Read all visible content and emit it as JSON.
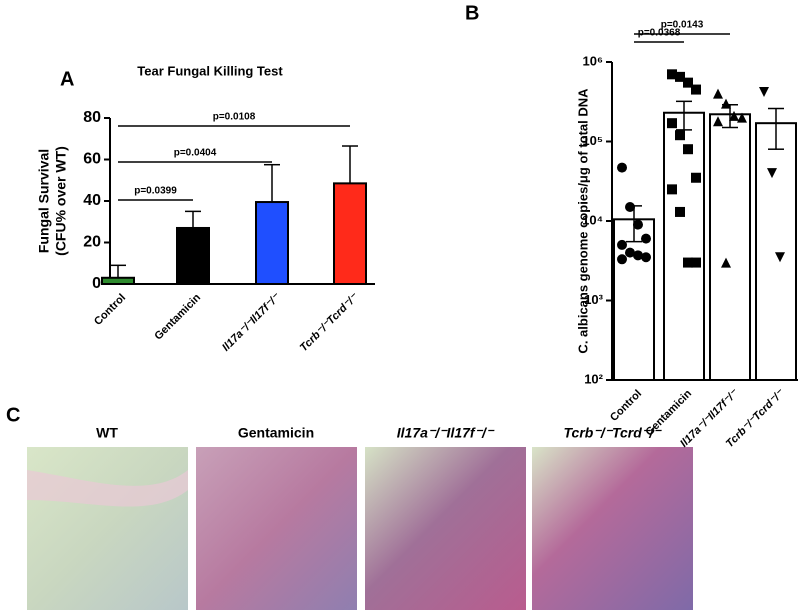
{
  "chart_data": [
    {
      "type": "bar",
      "panel_label": "A",
      "title": "Tear Fungal Killing Test",
      "ylabel_lines": [
        "Fungal Survival",
        "(CFU% over WT)"
      ],
      "categories": [
        "Control",
        "Gentamicin",
        "Il17a⁻/⁻Il17f⁻/⁻",
        "Tcrb⁻/⁻Tcrd⁻/⁻"
      ],
      "values": [
        3,
        27,
        39.5,
        48.5
      ],
      "errors": [
        6,
        8,
        18,
        18
      ],
      "colors": [
        "#2e8b2e",
        "#000000",
        "#1f4fff",
        "#ff2a1a"
      ],
      "ylim": [
        0,
        80
      ],
      "yticks": [
        0,
        20,
        40,
        60,
        80
      ],
      "annotations": [
        "p=0.0399",
        "p=0.0404",
        "p=0.0108"
      ]
    },
    {
      "type": "bar",
      "panel_label": "B",
      "ylabel": "C. albicans genome copies/μg of total DNA",
      "categories": [
        "Control",
        "Gentamicin",
        "Il17a⁻/⁻Il17f⁻/⁻",
        "Tcrb⁻/⁻Tcrd⁻/⁻"
      ],
      "values": [
        10500,
        230000,
        220000,
        170000
      ],
      "errors": [
        5000,
        90000,
        70000,
        90000
      ],
      "colors": [
        "#ffffff",
        "#ffffff",
        "#ffffff",
        "#ffffff"
      ],
      "points": [
        [
          47000,
          15000,
          9000,
          6000,
          5000,
          4000,
          3700,
          3500,
          3300
        ],
        [
          700000,
          650000,
          550000,
          450000,
          170000,
          120000,
          80000,
          35000,
          25000,
          13000,
          3000,
          3000
        ],
        [
          400000,
          300000,
          210000,
          200000,
          180000,
          3000
        ],
        [
          420000,
          40000,
          3500
        ]
      ],
      "markers": [
        "circle",
        "square",
        "triangle-up",
        "triangle-down"
      ],
      "log_scale": true,
      "ylim": [
        100,
        1000000
      ],
      "yticks": [
        {
          "value": 100,
          "label": "10²"
        },
        {
          "value": 1000,
          "label": "10³"
        },
        {
          "value": 10000,
          "label": "10⁴"
        },
        {
          "value": 100000,
          "label": "10⁵"
        },
        {
          "value": 1000000,
          "label": "10⁶"
        }
      ],
      "annotations": [
        "p=0.0368",
        "p=0.0143"
      ]
    }
  ],
  "panel_c": {
    "panel_label": "C",
    "titles": [
      "WT",
      "Gentamicin",
      "Il17a⁻/⁻Il17f⁻/⁻",
      "Tcrb⁻/⁻Tcrd⁻/⁻"
    ]
  }
}
